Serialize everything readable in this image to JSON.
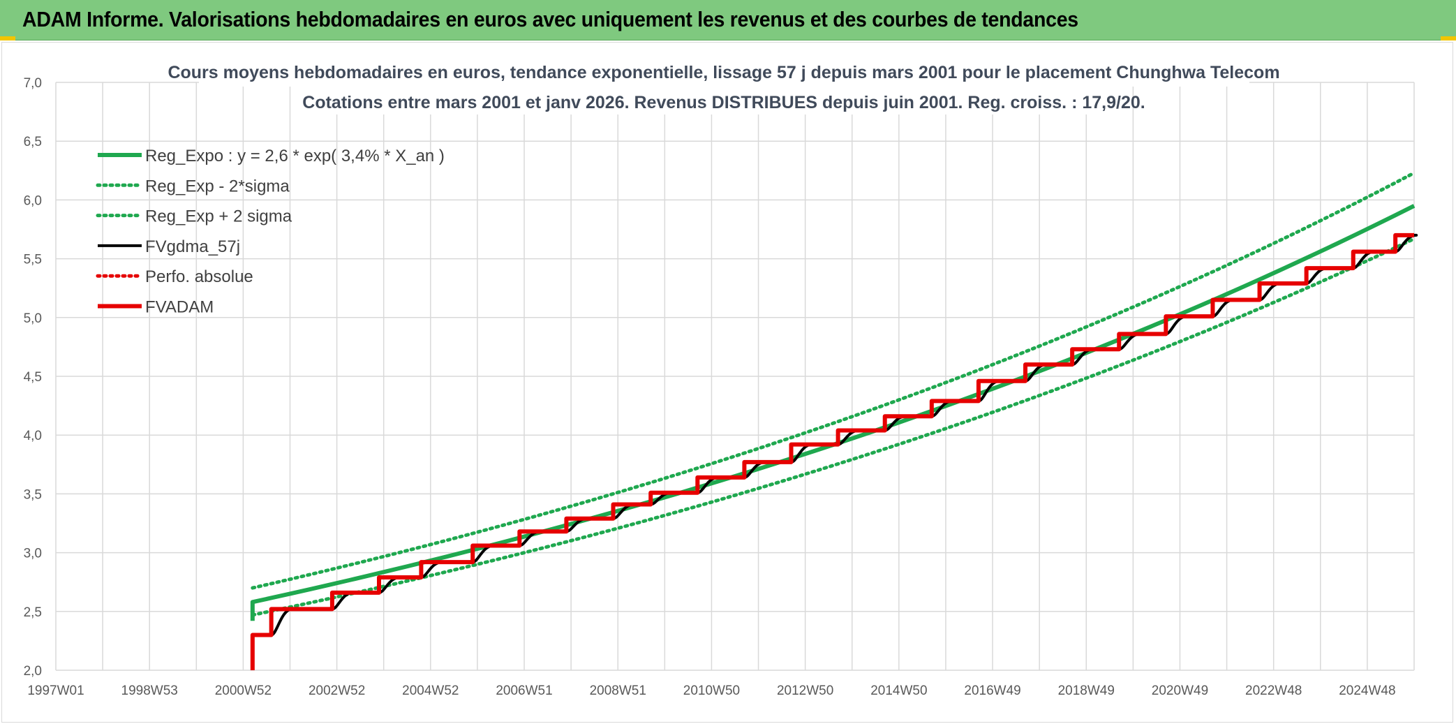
{
  "header": {
    "title": "ADAM Informe. Valorisations hebdomadaires en euros avec uniquement les revenus et des courbes de tendances"
  },
  "chart_data": {
    "type": "line",
    "title": "Cours moyens hebdomadaires en euros, tendance exponentielle, lissage 57 j depuis mars 2001 pour le placement Chunghwa Telecom",
    "subtitle": "Cotations entre mars 2001 et janv 2026. Revenus DISTRIBUES depuis juin 2001. Reg. croiss. : 17,9/20.",
    "xlabel": "",
    "ylabel": "",
    "ylim": [
      2.0,
      7.0
    ],
    "xlim": [
      1997.0,
      2026.0
    ],
    "grid": true,
    "legend_position": "top-left",
    "y_ticks": [
      "2,0",
      "2,5",
      "3,0",
      "3,5",
      "4,0",
      "4,5",
      "5,0",
      "5,5",
      "6,0",
      "6,5",
      "7,0"
    ],
    "x_ticks": [
      {
        "label": "1997W01",
        "x": 1997.0
      },
      {
        "label": "1998W53",
        "x": 1999.0
      },
      {
        "label": "2000W52",
        "x": 2001.0
      },
      {
        "label": "2002W52",
        "x": 2003.0
      },
      {
        "label": "2004W52",
        "x": 2005.0
      },
      {
        "label": "2006W51",
        "x": 2007.0
      },
      {
        "label": "2008W51",
        "x": 2009.0
      },
      {
        "label": "2010W50",
        "x": 2011.0
      },
      {
        "label": "2012W50",
        "x": 2013.0
      },
      {
        "label": "2014W50",
        "x": 2015.0
      },
      {
        "label": "2016W49",
        "x": 2017.0
      },
      {
        "label": "2018W49",
        "x": 2019.0
      },
      {
        "label": "2020W49",
        "x": 2021.0
      },
      {
        "label": "2022W48",
        "x": 2023.0
      },
      {
        "label": "2024W48",
        "x": 2025.0
      }
    ],
    "series": [
      {
        "name": "Reg_Expo : y = 2,6 * exp( 3,4% *  X_an )",
        "color": "#1fa84f",
        "style": "solid-thick",
        "x": [
          2001.2,
          2026.0
        ],
        "y": [
          2.58,
          5.95
        ]
      },
      {
        "name": "Reg_Exp - 2*sigma",
        "color": "#1fa84f",
        "style": "dotted",
        "x": [
          2001.2,
          2026.0
        ],
        "y": [
          2.47,
          5.67
        ]
      },
      {
        "name": "Reg_Exp + 2 sigma",
        "color": "#1fa84f",
        "style": "dotted",
        "x": [
          2001.2,
          2026.0
        ],
        "y": [
          2.7,
          6.23
        ]
      },
      {
        "name": "FVgdma_57j",
        "color": "#000000",
        "style": "solid",
        "steps": [
          [
            2001.2,
            2.3
          ],
          [
            2001.6,
            2.52
          ],
          [
            2002.9,
            2.66
          ],
          [
            2003.9,
            2.79
          ],
          [
            2004.8,
            2.92
          ],
          [
            2005.9,
            3.06
          ],
          [
            2006.9,
            3.18
          ],
          [
            2007.9,
            3.29
          ],
          [
            2008.9,
            3.41
          ],
          [
            2009.7,
            3.51
          ],
          [
            2010.7,
            3.64
          ],
          [
            2011.7,
            3.77
          ],
          [
            2012.7,
            3.92
          ],
          [
            2013.7,
            4.04
          ],
          [
            2014.7,
            4.16
          ],
          [
            2015.7,
            4.29
          ],
          [
            2016.7,
            4.46
          ],
          [
            2017.7,
            4.6
          ],
          [
            2018.7,
            4.73
          ],
          [
            2019.7,
            4.86
          ],
          [
            2020.7,
            5.01
          ],
          [
            2021.7,
            5.15
          ],
          [
            2022.7,
            5.29
          ],
          [
            2023.7,
            5.42
          ],
          [
            2024.7,
            5.56
          ],
          [
            2025.6,
            5.7
          ]
        ],
        "x_end": 2026.0
      },
      {
        "name": "Perfo. absolue",
        "color": "#e60000",
        "style": "dotted",
        "x": [],
        "y": []
      },
      {
        "name": "FVADAM",
        "color": "#e60000",
        "style": "solid-thick",
        "start": [
          2001.2,
          2.0
        ],
        "steps": [
          [
            2001.2,
            2.3
          ],
          [
            2001.6,
            2.52
          ],
          [
            2002.9,
            2.66
          ],
          [
            2003.9,
            2.79
          ],
          [
            2004.8,
            2.92
          ],
          [
            2005.9,
            3.06
          ],
          [
            2006.9,
            3.18
          ],
          [
            2007.9,
            3.29
          ],
          [
            2008.9,
            3.41
          ],
          [
            2009.7,
            3.51
          ],
          [
            2010.7,
            3.64
          ],
          [
            2011.7,
            3.77
          ],
          [
            2012.7,
            3.92
          ],
          [
            2013.7,
            4.04
          ],
          [
            2014.7,
            4.16
          ],
          [
            2015.7,
            4.29
          ],
          [
            2016.7,
            4.46
          ],
          [
            2017.7,
            4.6
          ],
          [
            2018.7,
            4.73
          ],
          [
            2019.7,
            4.86
          ],
          [
            2020.7,
            5.01
          ],
          [
            2021.7,
            5.15
          ],
          [
            2022.7,
            5.29
          ],
          [
            2023.7,
            5.42
          ],
          [
            2024.7,
            5.56
          ],
          [
            2025.6,
            5.7
          ]
        ],
        "x_end": 2026.0
      }
    ]
  }
}
